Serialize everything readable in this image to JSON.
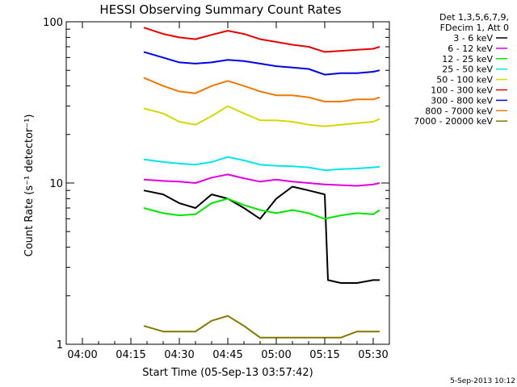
{
  "chart_data": {
    "type": "line",
    "title": "HESSI Observing Summary Count Rates",
    "xlabel": "Start Time (05-Sep-13 03:57:42)",
    "ylabel": "Count Rate (s⁻¹ detector⁻¹)",
    "y_scale": "log",
    "ylim": [
      1,
      100
    ],
    "xlim": [
      "03:55",
      "05:35"
    ],
    "x_ticks": [
      "04:00",
      "04:15",
      "04:30",
      "04:45",
      "05:00",
      "05:15",
      "05:30"
    ],
    "y_ticks": [
      "1",
      "10",
      "100"
    ],
    "legend_header": [
      "Det 1,3,5,6,7,9,",
      "FDecim 1, Att 0"
    ],
    "legend_position": "top-right",
    "timestamp": "5-Sep-2013 10:12",
    "series": [
      {
        "name": "3 - 6 keV",
        "color": "#000000",
        "x": [
          "04:19",
          "04:25",
          "04:30",
          "04:35",
          "04:40",
          "04:45",
          "04:50",
          "04:55",
          "05:00",
          "05:05",
          "05:10",
          "05:15",
          "05:16",
          "05:20",
          "05:25",
          "05:30",
          "05:32"
        ],
        "y": [
          9,
          8.5,
          7.5,
          7,
          8.5,
          8,
          7,
          6,
          8,
          9.5,
          9,
          8.5,
          2.5,
          2.4,
          2.4,
          2.5,
          2.5
        ]
      },
      {
        "name": "6 - 12 keV",
        "color": "#e100e1",
        "x": [
          "04:19",
          "04:25",
          "04:30",
          "04:35",
          "04:40",
          "04:45",
          "04:50",
          "04:55",
          "05:00",
          "05:05",
          "05:10",
          "05:15",
          "05:20",
          "05:25",
          "05:30",
          "05:32"
        ],
        "y": [
          10.5,
          10.3,
          10.2,
          10,
          10.8,
          11.3,
          10.7,
          10.2,
          10.5,
          10.2,
          10,
          9.8,
          9.7,
          9.6,
          9.8,
          10
        ]
      },
      {
        "name": "12 - 25 keV",
        "color": "#00e600",
        "x": [
          "04:19",
          "04:25",
          "04:30",
          "04:35",
          "04:40",
          "04:45",
          "04:50",
          "04:55",
          "05:00",
          "05:05",
          "05:10",
          "05:15",
          "05:20",
          "05:25",
          "05:30",
          "05:32"
        ],
        "y": [
          7,
          6.5,
          6.3,
          6.4,
          7.5,
          8,
          7.3,
          6.8,
          6.5,
          6.8,
          6.5,
          6,
          6.3,
          6.5,
          6.4,
          6.8
        ]
      },
      {
        "name": "25 - 50 keV",
        "color": "#00e6e6",
        "x": [
          "04:19",
          "04:25",
          "04:30",
          "04:35",
          "04:40",
          "04:45",
          "04:50",
          "04:55",
          "05:00",
          "05:05",
          "05:10",
          "05:15",
          "05:20",
          "05:25",
          "05:30",
          "05:32"
        ],
        "y": [
          14,
          13.5,
          13.2,
          13,
          13.5,
          14.5,
          13.8,
          13,
          12.8,
          12.7,
          12.5,
          12,
          12.2,
          12.3,
          12.5,
          12.6
        ]
      },
      {
        "name": "50 - 100 keV",
        "color": "#d7d700",
        "x": [
          "04:19",
          "04:25",
          "04:30",
          "04:35",
          "04:40",
          "04:45",
          "04:50",
          "04:55",
          "05:00",
          "05:05",
          "05:10",
          "05:15",
          "05:20",
          "05:25",
          "05:30",
          "05:32"
        ],
        "y": [
          29,
          27,
          24,
          23,
          26,
          30,
          27,
          24.5,
          24.5,
          24,
          23,
          22.5,
          23,
          23.5,
          24,
          25
        ]
      },
      {
        "name": "100 - 300 keV",
        "color": "#e60000",
        "x": [
          "04:19",
          "04:25",
          "04:30",
          "04:35",
          "04:40",
          "04:45",
          "04:50",
          "04:55",
          "05:00",
          "05:05",
          "05:10",
          "05:15",
          "05:20",
          "05:25",
          "05:30",
          "05:32"
        ],
        "y": [
          92,
          84,
          80,
          78,
          83,
          88,
          84,
          78,
          75,
          72,
          70,
          65,
          66,
          67,
          68,
          70
        ]
      },
      {
        "name": "300 - 800 keV",
        "color": "#0000e6",
        "x": [
          "04:19",
          "04:25",
          "04:30",
          "04:35",
          "04:40",
          "04:45",
          "04:50",
          "04:55",
          "05:00",
          "05:05",
          "05:10",
          "05:15",
          "05:20",
          "05:25",
          "05:30",
          "05:32"
        ],
        "y": [
          65,
          60,
          56,
          55,
          56,
          58,
          57,
          55,
          53,
          52,
          51,
          47,
          48,
          48,
          49,
          50
        ]
      },
      {
        "name": "800 - 7000 keV",
        "color": "#f07800",
        "x": [
          "04:19",
          "04:25",
          "04:30",
          "04:35",
          "04:40",
          "04:45",
          "04:50",
          "04:55",
          "05:00",
          "05:05",
          "05:10",
          "05:15",
          "05:20",
          "05:25",
          "05:30",
          "05:32"
        ],
        "y": [
          45,
          40,
          37,
          36,
          40,
          43,
          40,
          37,
          35,
          35,
          34,
          32,
          32,
          33,
          33,
          34
        ]
      },
      {
        "name": "7000 - 20000 keV",
        "color": "#827800",
        "x": [
          "04:19",
          "04:25",
          "04:30",
          "04:35",
          "04:40",
          "04:45",
          "04:50",
          "04:55",
          "05:00",
          "05:05",
          "05:10",
          "05:15",
          "05:20",
          "05:25",
          "05:30",
          "05:32"
        ],
        "y": [
          1.3,
          1.2,
          1.2,
          1.2,
          1.4,
          1.5,
          1.3,
          1.1,
          1.1,
          1.1,
          1.1,
          1.1,
          1.1,
          1.2,
          1.2,
          1.2
        ]
      }
    ]
  }
}
